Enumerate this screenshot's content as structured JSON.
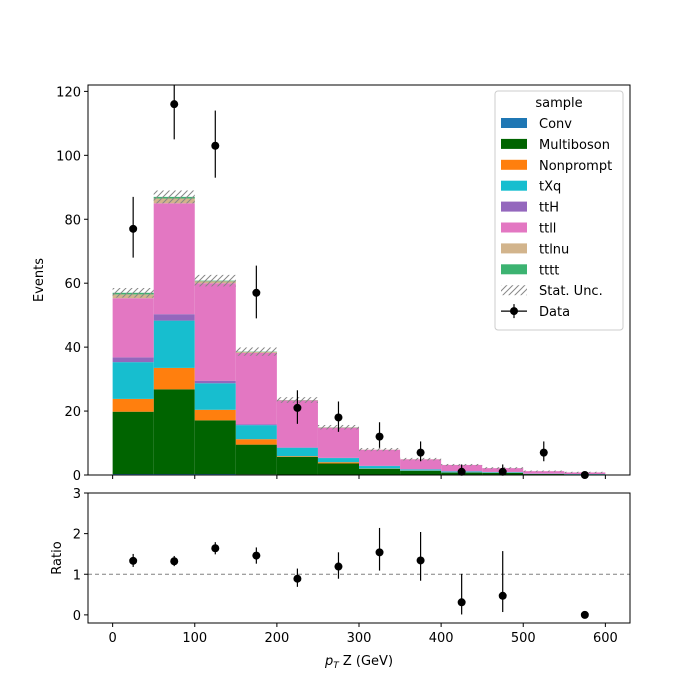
{
  "chart_data": [
    {
      "type": "bar",
      "stacked": true,
      "xlim": [
        -30,
        630
      ],
      "ylim": [
        0,
        122
      ],
      "ylabel": "Events",
      "xticks": [
        0,
        100,
        200,
        300,
        400,
        500,
        600
      ],
      "yticks": [
        0,
        20,
        40,
        60,
        80,
        100,
        120
      ],
      "bin_edges": [
        0,
        50,
        100,
        150,
        200,
        250,
        300,
        350,
        400,
        450,
        500,
        550,
        600
      ],
      "legend": {
        "title": "sample",
        "placement": "top-right",
        "unc_label": "Stat. Unc.",
        "data_label": "Data"
      },
      "series": [
        {
          "name": "Conv",
          "color": "#1f77b4",
          "values": [
            0.3,
            0.3,
            0.3,
            0.2,
            0.1,
            0.1,
            0.1,
            0.05,
            0.05,
            0.05,
            0.0,
            0.0
          ]
        },
        {
          "name": "Multiboson",
          "color": "#006400",
          "values": [
            19.5,
            26.5,
            16.8,
            9.3,
            5.6,
            3.5,
            1.8,
            1.2,
            0.7,
            0.6,
            0.3,
            0.2
          ]
        },
        {
          "name": "Nonprompt",
          "color": "#ff7f0e",
          "values": [
            4.0,
            6.7,
            3.3,
            1.7,
            0.2,
            0.4,
            0.1,
            0.1,
            0.05,
            0.05,
            0.0,
            0.0
          ]
        },
        {
          "name": "tXq",
          "color": "#17becf",
          "values": [
            11.5,
            14.8,
            8.3,
            4.4,
            2.6,
            1.3,
            0.8,
            0.4,
            0.3,
            0.2,
            0.1,
            0.1
          ]
        },
        {
          "name": "ttH",
          "color": "#9467bd",
          "values": [
            1.5,
            2.0,
            0.8,
            0.3,
            0.2,
            0.1,
            0.1,
            0.05,
            0.05,
            0.05,
            0.0,
            0.0
          ]
        },
        {
          "name": "ttll",
          "color": "#e377c2",
          "values": [
            18.5,
            34.7,
            30.5,
            22.3,
            14.6,
            9.4,
            5.0,
            3.1,
            2.0,
            1.2,
            0.8,
            0.5
          ]
        },
        {
          "name": "ttlnu",
          "color": "#d2b48c",
          "values": [
            1.2,
            1.5,
            0.6,
            0.3,
            0.1,
            0.1,
            0.05,
            0.05,
            0.0,
            0.0,
            0.0,
            0.0
          ]
        },
        {
          "name": "tttt",
          "color": "#3cb371",
          "values": [
            0.5,
            0.5,
            0.2,
            0.1,
            0.05,
            0.05,
            0.0,
            0.0,
            0.0,
            0.0,
            0.0,
            0.0
          ]
        }
      ],
      "stat_unc": [
        1.5,
        2.0,
        1.8,
        1.3,
        0.9,
        0.7,
        0.5,
        0.4,
        0.3,
        0.3,
        0.2,
        0.2
      ],
      "data": {
        "x": [
          25,
          75,
          125,
          175,
          225,
          275,
          325,
          375,
          425,
          475,
          525,
          575
        ],
        "y": [
          77,
          116,
          103,
          57,
          21,
          18,
          12,
          7,
          1,
          1,
          7,
          0
        ],
        "err_low": [
          9,
          11,
          10,
          8,
          5,
          4.5,
          3.5,
          2.7,
          1,
          1,
          2.7,
          0
        ],
        "err_high": [
          10,
          11,
          11,
          8.5,
          5.5,
          5,
          4.5,
          3.5,
          2.3,
          2.3,
          3.5,
          0
        ]
      }
    },
    {
      "type": "scatter",
      "xlim": [
        -30,
        630
      ],
      "ylim": [
        -0.2,
        3
      ],
      "xlabel_prefix": "p",
      "xlabel_sub": "T",
      "xlabel_suffix": " Z (GeV)",
      "ylabel": "Ratio",
      "xticks": [
        0,
        100,
        200,
        300,
        400,
        500,
        600
      ],
      "yticks": [
        0,
        1,
        2,
        3
      ],
      "reference_line": 1,
      "points": {
        "x": [
          25,
          75,
          125,
          175,
          225,
          275,
          325,
          375,
          425,
          475,
          575
        ],
        "y": [
          1.33,
          1.32,
          1.64,
          1.46,
          0.89,
          1.19,
          1.54,
          1.34,
          0.31,
          0.47,
          0.0
        ],
        "err_low": [
          0.15,
          0.12,
          0.15,
          0.2,
          0.2,
          0.3,
          0.45,
          0.5,
          0.3,
          0.4,
          0.0
        ],
        "err_high": [
          0.17,
          0.13,
          0.15,
          0.2,
          0.25,
          0.35,
          0.6,
          0.7,
          0.7,
          1.1,
          0.0
        ]
      }
    }
  ]
}
